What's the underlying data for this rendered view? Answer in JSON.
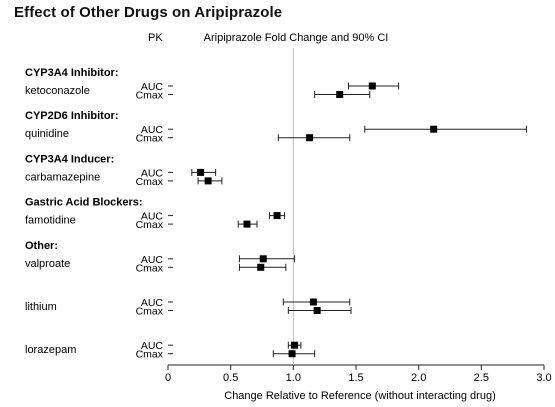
{
  "chart_data": {
    "type": "forest",
    "title": "Effect of Other Drugs on Aripiprazole",
    "pk_header": "PK",
    "subtitle": "Aripiprazole Fold Change and 90% CI",
    "xlabel": "Change Relative to Reference (without interacting drug)",
    "xlim": [
      0,
      3.0
    ],
    "ticks": [
      "0",
      "0.5",
      "1.0",
      "1.5",
      "2.0",
      "2.5",
      "3.0"
    ],
    "reference_line": 1.0,
    "groups": [
      {
        "heading": "CYP3A4 Inhibitor:",
        "drug": "ketoconazole",
        "rows": [
          {
            "pk": "AUC",
            "est": 1.63,
            "lo": 1.44,
            "hi": 1.84
          },
          {
            "pk": "Cmax",
            "est": 1.37,
            "lo": 1.17,
            "hi": 1.61
          }
        ]
      },
      {
        "heading": "CYP2D6 Inhibitor:",
        "drug": "quinidine",
        "rows": [
          {
            "pk": "AUC",
            "est": 2.12,
            "lo": 1.57,
            "hi": 2.86
          },
          {
            "pk": "Cmax",
            "est": 1.13,
            "lo": 0.88,
            "hi": 1.45
          }
        ]
      },
      {
        "heading": "CYP3A4 Inducer:",
        "drug": "carbamazepine",
        "rows": [
          {
            "pk": "AUC",
            "est": 0.26,
            "lo": 0.19,
            "hi": 0.38
          },
          {
            "pk": "Cmax",
            "est": 0.32,
            "lo": 0.24,
            "hi": 0.43
          }
        ]
      },
      {
        "heading": "Gastric Acid Blockers:",
        "drug": "famotidine",
        "rows": [
          {
            "pk": "AUC",
            "est": 0.87,
            "lo": 0.81,
            "hi": 0.93
          },
          {
            "pk": "Cmax",
            "est": 0.63,
            "lo": 0.56,
            "hi": 0.71
          }
        ]
      },
      {
        "heading": "Other:",
        "drug": "valproate",
        "rows": [
          {
            "pk": "AUC",
            "est": 0.76,
            "lo": 0.57,
            "hi": 1.01
          },
          {
            "pk": "Cmax",
            "est": 0.74,
            "lo": 0.57,
            "hi": 0.94
          }
        ]
      },
      {
        "heading": "",
        "drug": "lithium",
        "rows": [
          {
            "pk": "AUC",
            "est": 1.16,
            "lo": 0.92,
            "hi": 1.45
          },
          {
            "pk": "Cmax",
            "est": 1.19,
            "lo": 0.96,
            "hi": 1.46
          }
        ]
      },
      {
        "heading": "",
        "drug": "lorazepam",
        "rows": [
          {
            "pk": "AUC",
            "est": 1.01,
            "lo": 0.96,
            "hi": 1.06
          },
          {
            "pk": "Cmax",
            "est": 0.99,
            "lo": 0.84,
            "hi": 1.17
          }
        ]
      }
    ]
  }
}
